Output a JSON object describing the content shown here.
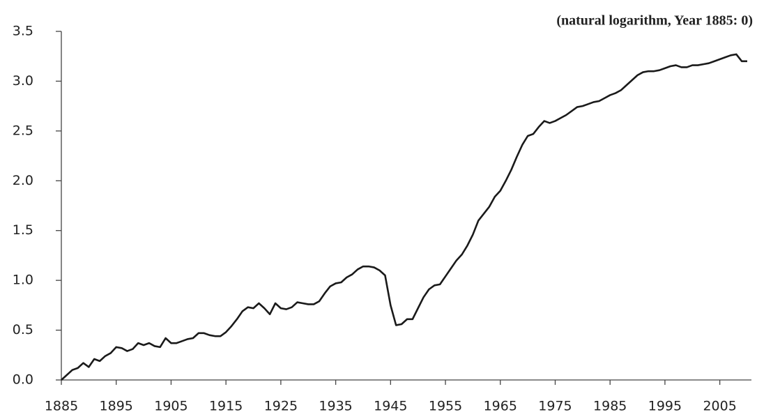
{
  "chart_data": {
    "type": "line",
    "annotation": "(natural logarithm, Year 1885: 0)",
    "x": [
      1885,
      1886,
      1887,
      1888,
      1889,
      1890,
      1891,
      1892,
      1893,
      1894,
      1895,
      1896,
      1897,
      1898,
      1899,
      1900,
      1901,
      1902,
      1903,
      1904,
      1905,
      1906,
      1907,
      1908,
      1909,
      1910,
      1911,
      1912,
      1913,
      1914,
      1915,
      1916,
      1917,
      1918,
      1919,
      1920,
      1921,
      1922,
      1923,
      1924,
      1925,
      1926,
      1927,
      1928,
      1929,
      1930,
      1931,
      1932,
      1933,
      1934,
      1935,
      1936,
      1937,
      1938,
      1939,
      1940,
      1941,
      1942,
      1943,
      1944,
      1945,
      1946,
      1947,
      1948,
      1949,
      1950,
      1951,
      1952,
      1953,
      1954,
      1955,
      1956,
      1957,
      1958,
      1959,
      1960,
      1961,
      1962,
      1963,
      1964,
      1965,
      1966,
      1967,
      1968,
      1969,
      1970,
      1971,
      1972,
      1973,
      1974,
      1975,
      1976,
      1977,
      1978,
      1979,
      1980,
      1981,
      1982,
      1983,
      1984,
      1985,
      1986,
      1987,
      1988,
      1989,
      1990,
      1991,
      1992,
      1993,
      1994,
      1995,
      1996,
      1997,
      1998,
      1999,
      2000,
      2001,
      2002,
      2003,
      2004,
      2005,
      2006,
      2007,
      2008,
      2009,
      2010
    ],
    "values": [
      0.0,
      0.05,
      0.1,
      0.12,
      0.17,
      0.13,
      0.21,
      0.19,
      0.24,
      0.27,
      0.33,
      0.32,
      0.29,
      0.31,
      0.37,
      0.35,
      0.37,
      0.34,
      0.33,
      0.42,
      0.37,
      0.37,
      0.39,
      0.41,
      0.42,
      0.47,
      0.47,
      0.45,
      0.44,
      0.44,
      0.48,
      0.54,
      0.61,
      0.69,
      0.73,
      0.72,
      0.77,
      0.72,
      0.66,
      0.77,
      0.72,
      0.71,
      0.73,
      0.78,
      0.77,
      0.76,
      0.76,
      0.79,
      0.87,
      0.94,
      0.97,
      0.98,
      1.03,
      1.06,
      1.11,
      1.14,
      1.14,
      1.13,
      1.1,
      1.05,
      0.75,
      0.55,
      0.56,
      0.61,
      0.61,
      0.72,
      0.83,
      0.91,
      0.95,
      0.96,
      1.04,
      1.12,
      1.2,
      1.26,
      1.35,
      1.46,
      1.6,
      1.67,
      1.74,
      1.84,
      1.9,
      2.0,
      2.11,
      2.24,
      2.36,
      2.45,
      2.47,
      2.54,
      2.6,
      2.58,
      2.6,
      2.63,
      2.66,
      2.7,
      2.74,
      2.75,
      2.77,
      2.79,
      2.8,
      2.83,
      2.86,
      2.88,
      2.91,
      2.96,
      3.01,
      3.06,
      3.09,
      3.1,
      3.1,
      3.11,
      3.13,
      3.15,
      3.16,
      3.14,
      3.14,
      3.16,
      3.16,
      3.17,
      3.18,
      3.2,
      3.22,
      3.24,
      3.26,
      3.27,
      3.2,
      3.2
    ],
    "color": "#1a1a1a",
    "xlim": [
      1885,
      2010
    ],
    "xticks": [
      1885,
      1895,
      1905,
      1915,
      1925,
      1935,
      1945,
      1955,
      1965,
      1975,
      1985,
      1995,
      2005
    ],
    "ylim": [
      0,
      3.5
    ],
    "yticks": [
      {
        "value": 0,
        "label": "0.0"
      },
      0.5,
      {
        "value": 1,
        "label": "1.0"
      },
      1.5,
      {
        "value": 2,
        "label": "2.0"
      },
      2.5,
      {
        "value": 3,
        "label": "3.0"
      },
      3.5
    ]
  }
}
